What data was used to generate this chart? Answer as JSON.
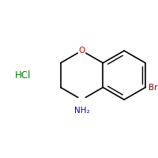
{
  "background_color": "#ffffff",
  "hcl_label": "HCl",
  "hcl_color": "#008000",
  "o_label": "O",
  "o_color": "#cc0000",
  "nh2_label": "NH₂",
  "nh2_color": "#0000cc",
  "br_label": "Br",
  "br_color": "#7b0000",
  "bond_color": "#000000",
  "bond_lw": 1.2,
  "figsize": [
    2.0,
    2.0
  ],
  "dpi": 100
}
